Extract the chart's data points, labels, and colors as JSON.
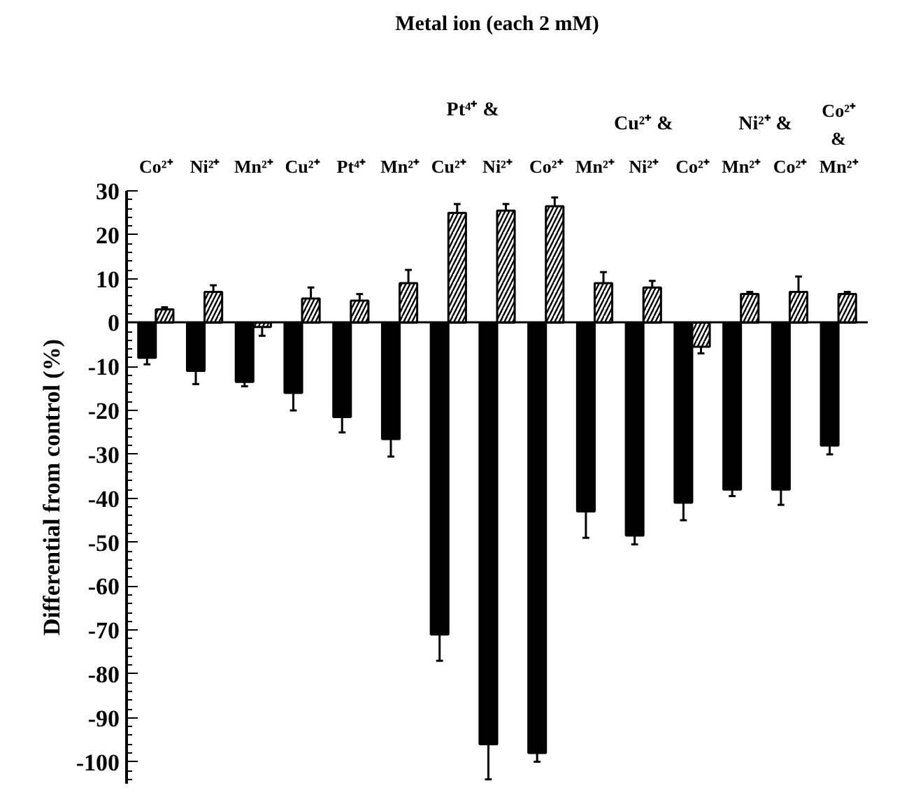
{
  "chart_data": {
    "type": "bar",
    "title": "Metal ion (each 2 mM)",
    "ylabel": "Differential from control (%)",
    "categories": [
      "Co²⁺",
      "Ni²⁺",
      "Mn²⁺",
      "Cu²⁺",
      "Pt⁴⁺",
      "Mn²⁺",
      "Cu²⁺",
      "Ni²⁺",
      "Co²⁺",
      "Mn²⁺",
      "Ni²⁺",
      "Co²⁺",
      "Mn²⁺",
      "Co²⁺",
      "Co²⁺ & Mn²⁺"
    ],
    "series": [
      {
        "color": "#000000",
        "values": [
          -8,
          -11,
          -13.5,
          -16,
          -21.5,
          -26.5,
          -71,
          -96,
          -98,
          -43,
          -48.5,
          -41,
          -38,
          -38,
          -28
        ],
        "errors": [
          [
            -9.5,
            -8
          ],
          [
            -14,
            -11
          ],
          [
            -14.5,
            -13.5
          ],
          [
            -20,
            -16
          ],
          [
            -25,
            -21.5
          ],
          [
            -30.5,
            -26.5
          ],
          [
            -77,
            -71
          ],
          [
            -104,
            -96
          ],
          [
            -100,
            -98
          ],
          [
            -49,
            -43
          ],
          [
            -50.5,
            -48.5
          ],
          [
            -45,
            -41
          ],
          [
            -39.5,
            -38
          ],
          [
            -41.5,
            -38
          ],
          [
            -30,
            -28
          ]
        ]
      },
      {
        "color": "#ffffff",
        "values": [
          3,
          7,
          -1,
          5.5,
          5,
          9,
          25,
          25.5,
          26.5,
          9,
          8,
          -5.5,
          6.5,
          7,
          6.5
        ],
        "errors": [
          [
            3,
            3.5
          ],
          [
            7,
            8.5
          ],
          [
            -3,
            -1
          ],
          [
            5.5,
            8
          ],
          [
            5,
            6.5
          ],
          [
            9,
            12
          ],
          [
            25,
            27
          ],
          [
            25.5,
            27
          ],
          [
            26.5,
            28.5
          ],
          [
            9,
            11.5
          ],
          [
            8,
            9.5
          ],
          [
            -7,
            -5.5
          ],
          [
            6.5,
            7
          ],
          [
            7,
            10.5
          ],
          [
            6.5,
            7
          ]
        ]
      }
    ],
    "annotations": [
      "Pt⁴⁺ &",
      "Cu²⁺ &",
      "Ni²⁺ &"
    ],
    "ylim": [
      -105,
      30
    ],
    "yticks": [
      -100,
      -90,
      -80,
      -70,
      -60,
      -50,
      -40,
      -30,
      -20,
      -10,
      0,
      10,
      20,
      30
    ]
  }
}
